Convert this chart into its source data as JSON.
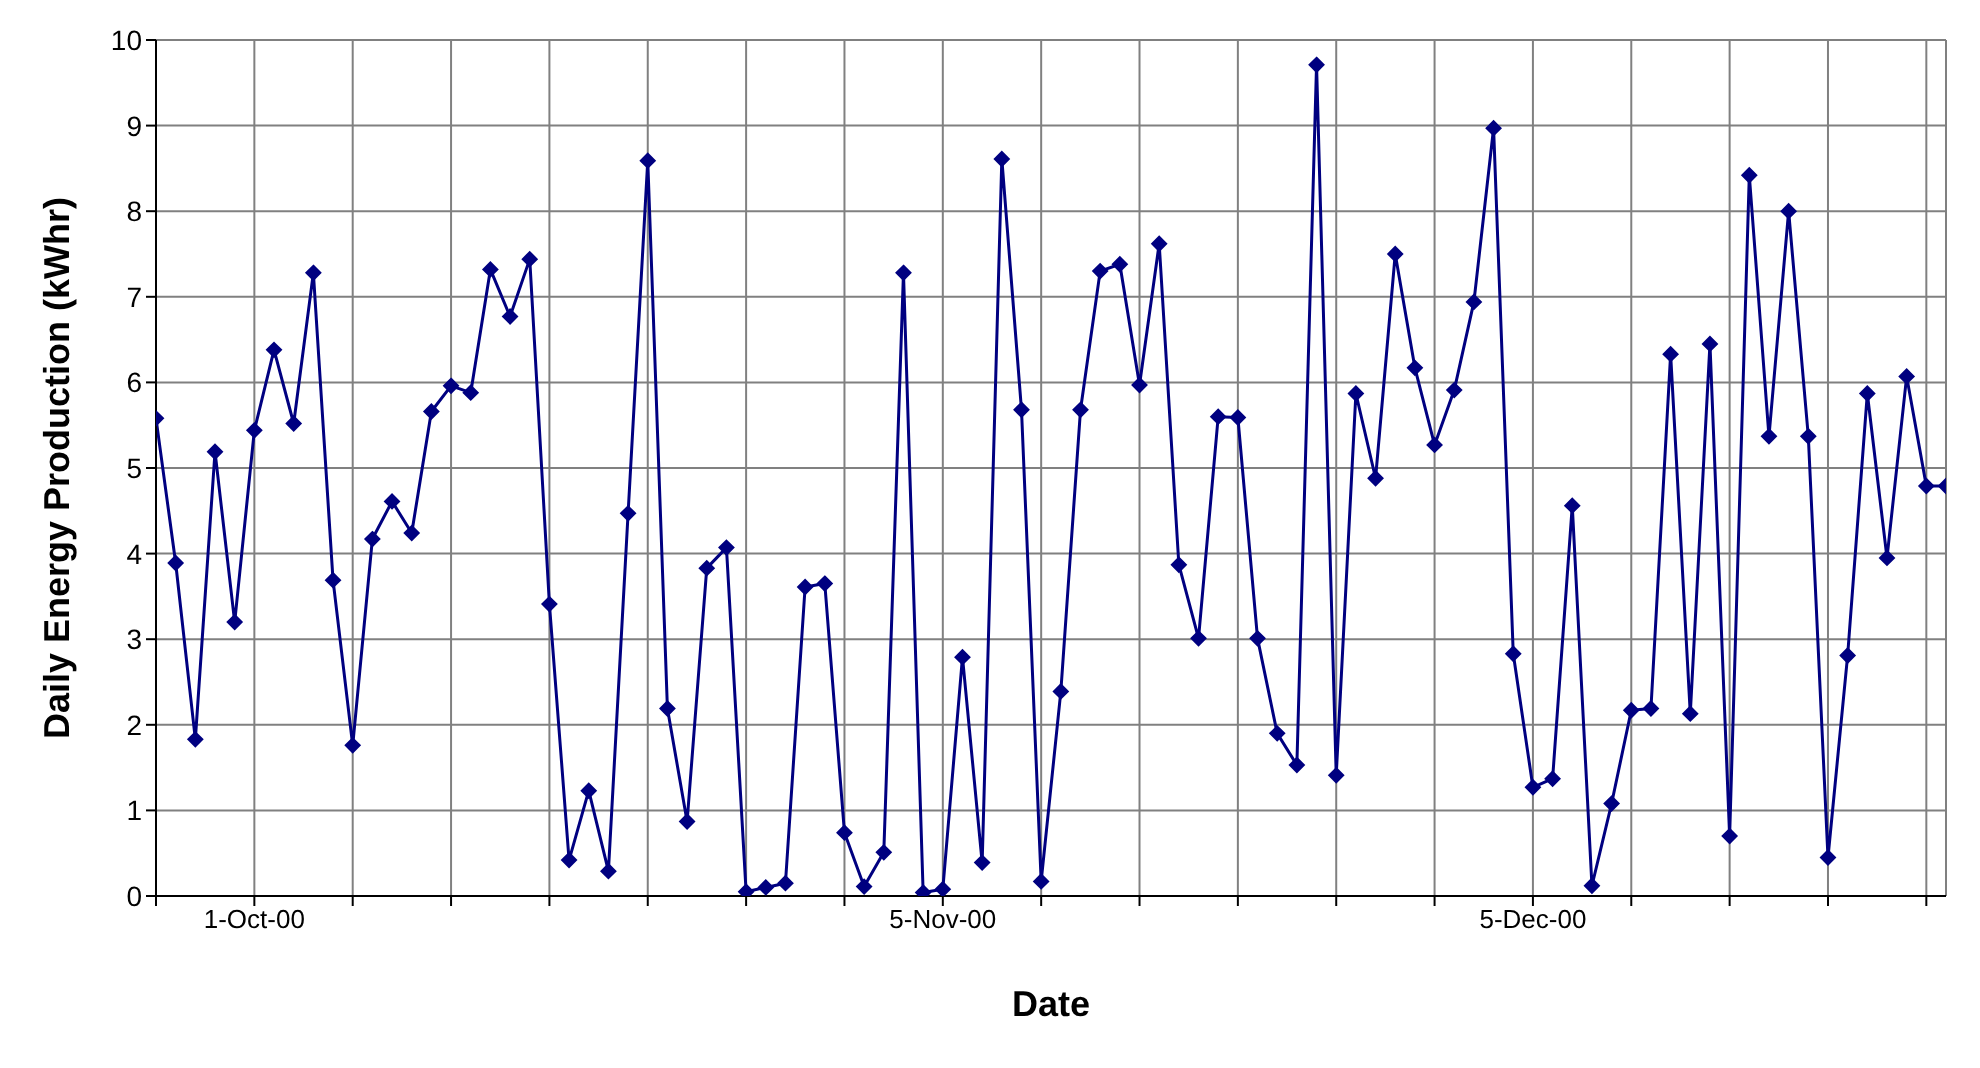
{
  "chart_data": {
    "type": "line",
    "xlabel": "Date",
    "ylabel": "Daily Energy Production (kWhr)",
    "x": [
      "2000-09-26",
      "2000-09-27",
      "2000-09-28",
      "2000-09-29",
      "2000-09-30",
      "2000-10-01",
      "2000-10-02",
      "2000-10-03",
      "2000-10-04",
      "2000-10-05",
      "2000-10-06",
      "2000-10-07",
      "2000-10-08",
      "2000-10-09",
      "2000-10-10",
      "2000-10-11",
      "2000-10-12",
      "2000-10-13",
      "2000-10-14",
      "2000-10-15",
      "2000-10-16",
      "2000-10-17",
      "2000-10-18",
      "2000-10-19",
      "2000-10-20",
      "2000-10-21",
      "2000-10-22",
      "2000-10-23",
      "2000-10-24",
      "2000-10-25",
      "2000-10-26",
      "2000-10-27",
      "2000-10-28",
      "2000-10-29",
      "2000-10-30",
      "2000-10-31",
      "2000-11-01",
      "2000-11-02",
      "2000-11-03",
      "2000-11-04",
      "2000-11-05",
      "2000-11-06",
      "2000-11-07",
      "2000-11-08",
      "2000-11-09",
      "2000-11-10",
      "2000-11-11",
      "2000-11-12",
      "2000-11-13",
      "2000-11-14",
      "2000-11-15",
      "2000-11-16",
      "2000-11-17",
      "2000-11-18",
      "2000-11-19",
      "2000-11-20",
      "2000-11-21",
      "2000-11-22",
      "2000-11-23",
      "2000-11-24",
      "2000-11-25",
      "2000-11-26",
      "2000-11-27",
      "2000-11-28",
      "2000-11-29",
      "2000-11-30",
      "2000-12-01",
      "2000-12-02",
      "2000-12-03",
      "2000-12-04",
      "2000-12-05",
      "2000-12-06",
      "2000-12-07",
      "2000-12-08",
      "2000-12-09",
      "2000-12-10",
      "2000-12-11",
      "2000-12-12",
      "2000-12-13",
      "2000-12-14",
      "2000-12-15",
      "2000-12-16",
      "2000-12-17",
      "2000-12-18",
      "2000-12-19",
      "2000-12-20",
      "2000-12-21",
      "2000-12-22",
      "2000-12-23",
      "2000-12-24",
      "2000-12-25",
      "2000-12-26"
    ],
    "series": [
      {
        "color": "#000080",
        "values": [
          5.58,
          3.89,
          1.83,
          5.19,
          3.2,
          5.44,
          6.38,
          5.52,
          7.28,
          3.69,
          1.76,
          4.17,
          4.61,
          4.24,
          5.66,
          5.96,
          5.88,
          7.32,
          6.77,
          7.44,
          3.41,
          0.42,
          1.23,
          0.29,
          4.47,
          8.59,
          2.19,
          0.87,
          3.83,
          4.07,
          0.05,
          0.1,
          0.15,
          3.61,
          3.65,
          0.74,
          0.11,
          0.51,
          7.28,
          0.04,
          0.08,
          2.79,
          0.39,
          8.61,
          5.68,
          0.17,
          2.39,
          5.68,
          7.3,
          7.38,
          5.97,
          7.62,
          3.87,
          3.01,
          5.6,
          5.59,
          3.01,
          1.9,
          1.53,
          9.71,
          1.41,
          5.87,
          4.88,
          7.5,
          6.17,
          5.27,
          5.91,
          6.94,
          8.97,
          2.83,
          1.27,
          1.37,
          4.56,
          0.12,
          1.08,
          2.17,
          2.19,
          6.33,
          2.13,
          6.45,
          0.7,
          8.42,
          5.37,
          8,
          5.37,
          0.45,
          2.81,
          5.87,
          3.95,
          6.07,
          4.79,
          4.79
        ]
      }
    ],
    "xlim": [
      "2000-09-26",
      "2000-12-26"
    ],
    "xticks": [
      {
        "value": "2000-09-26",
        "label": null
      },
      {
        "value": "2000-10-01",
        "label": "1-Oct-00"
      },
      {
        "value": "2000-10-06",
        "label": null
      },
      {
        "value": "2000-10-11",
        "label": null
      },
      {
        "value": "2000-10-16",
        "label": null
      },
      {
        "value": "2000-10-21",
        "label": null
      },
      {
        "value": "2000-10-26",
        "label": null
      },
      {
        "value": "2000-10-31",
        "label": null
      },
      {
        "value": "2000-11-05",
        "label": "5-Nov-00"
      },
      {
        "value": "2000-11-10",
        "label": null
      },
      {
        "value": "2000-11-15",
        "label": null
      },
      {
        "value": "2000-11-20",
        "label": null
      },
      {
        "value": "2000-11-25",
        "label": null
      },
      {
        "value": "2000-11-30",
        "label": null
      },
      {
        "value": "2000-12-05",
        "label": "5-Dec-00"
      },
      {
        "value": "2000-12-10",
        "label": null
      },
      {
        "value": "2000-12-15",
        "label": null
      },
      {
        "value": "2000-12-20",
        "label": null
      },
      {
        "value": "2000-12-25",
        "label": null
      }
    ],
    "ylim": [
      0,
      10
    ],
    "yticks": [
      0,
      1,
      2,
      3,
      4,
      5,
      6,
      7,
      8,
      9,
      10
    ],
    "grid": true,
    "legend": false,
    "marker": "diamond",
    "line_style": "solid"
  }
}
